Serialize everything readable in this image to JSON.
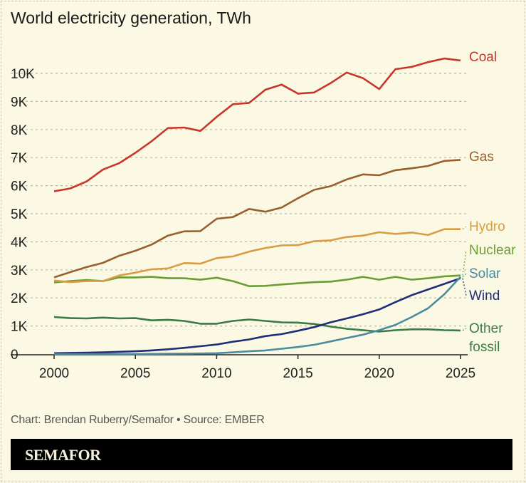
{
  "chart_data": {
    "type": "line",
    "title": "World electricity generation, TWh",
    "xlabel": "",
    "ylabel": "",
    "x": [
      2000,
      2001,
      2002,
      2003,
      2004,
      2005,
      2006,
      2007,
      2008,
      2009,
      2010,
      2011,
      2012,
      2013,
      2014,
      2015,
      2016,
      2017,
      2018,
      2019,
      2020,
      2021,
      2022,
      2023,
      2024,
      2025
    ],
    "xlim": [
      2000,
      2025
    ],
    "ylim": [
      0,
      10800
    ],
    "x_ticks": [
      "2000",
      "2005",
      "2010",
      "2015",
      "2020",
      "2025"
    ],
    "y_ticks": [
      "0",
      "1K",
      "2K",
      "3K",
      "4K",
      "5K",
      "6K",
      "7K",
      "8K",
      "9K",
      "10K"
    ],
    "grid": true,
    "legend": "direct labels at line ends (right)",
    "series": [
      {
        "name": "Coal",
        "color": "#c8352a",
        "values": [
          5800,
          5900,
          6150,
          6570,
          6800,
          7170,
          7580,
          8050,
          8070,
          7950,
          8450,
          8900,
          8950,
          9420,
          9600,
          9280,
          9320,
          9650,
          10030,
          9830,
          9440,
          10150,
          10230,
          10400,
          10530,
          10460
        ]
      },
      {
        "name": "Gas",
        "color": "#9a5f2e",
        "values": [
          2730,
          2920,
          3100,
          3250,
          3500,
          3680,
          3900,
          4220,
          4370,
          4380,
          4820,
          4880,
          5170,
          5070,
          5220,
          5550,
          5850,
          5980,
          6220,
          6400,
          6370,
          6550,
          6620,
          6700,
          6880,
          6920
        ]
      },
      {
        "name": "Hydro",
        "color": "#d99c45",
        "values": [
          2620,
          2560,
          2600,
          2600,
          2800,
          2900,
          3020,
          3050,
          3240,
          3220,
          3420,
          3480,
          3650,
          3780,
          3870,
          3880,
          4020,
          4050,
          4170,
          4220,
          4340,
          4280,
          4330,
          4240,
          4450,
          4450
        ]
      },
      {
        "name": "Nuclear",
        "color": "#6a9e34",
        "values": [
          2550,
          2600,
          2640,
          2600,
          2730,
          2730,
          2750,
          2700,
          2700,
          2650,
          2720,
          2600,
          2420,
          2430,
          2480,
          2520,
          2560,
          2580,
          2650,
          2750,
          2650,
          2750,
          2650,
          2700,
          2770,
          2800
        ]
      },
      {
        "name": "Solar",
        "color": "#4a8ba0",
        "values": [
          0,
          0,
          0,
          0,
          0,
          0,
          5,
          10,
          15,
          20,
          30,
          60,
          100,
          130,
          190,
          250,
          330,
          450,
          570,
          690,
          850,
          1040,
          1320,
          1630,
          2130,
          2750
        ]
      },
      {
        "name": "Wind",
        "color": "#1f2c78",
        "values": [
          30,
          40,
          50,
          60,
          80,
          100,
          130,
          170,
          220,
          280,
          340,
          440,
          520,
          640,
          710,
          830,
          960,
          1130,
          1270,
          1420,
          1590,
          1850,
          2100,
          2300,
          2500,
          2700
        ]
      },
      {
        "name": "Other fossil",
        "color": "#3a7a45",
        "values": [
          1320,
          1280,
          1270,
          1300,
          1270,
          1280,
          1200,
          1220,
          1180,
          1080,
          1080,
          1180,
          1230,
          1180,
          1130,
          1120,
          1070,
          980,
          900,
          850,
          800,
          850,
          880,
          880,
          850,
          840
        ]
      }
    ]
  },
  "footer": {
    "credit": "Chart: Brendan Ruberry/Semafor • Source: EMBER",
    "brand": "SEMAFOR"
  }
}
